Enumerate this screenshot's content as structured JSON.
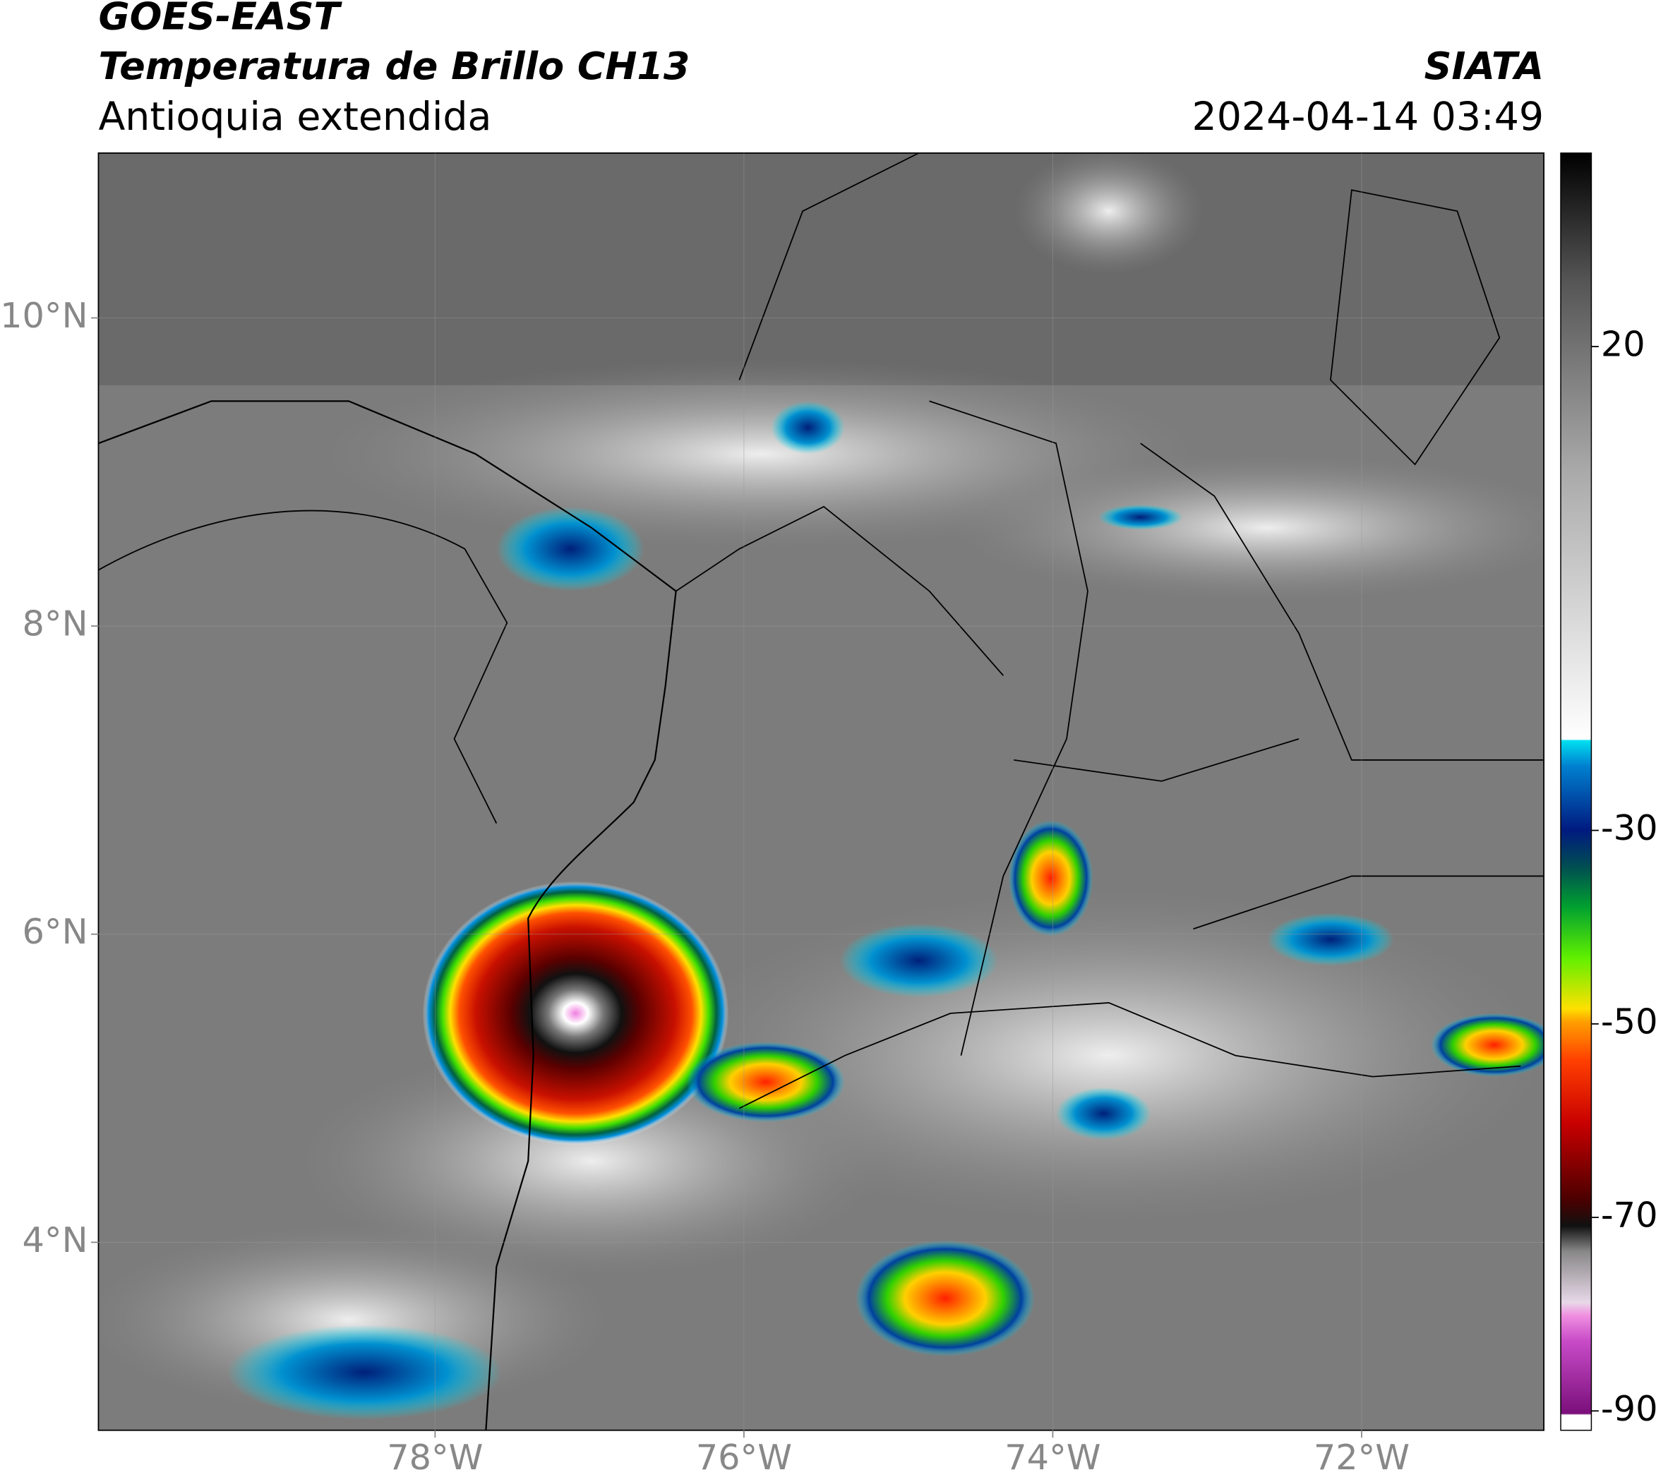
{
  "header": {
    "title": "GOES-EAST",
    "subtitle": "Temperatura de Brillo CH13",
    "region": "Antioquia extendida",
    "source": "SIATA",
    "datetime": "2024-04-14 03:49"
  },
  "map": {
    "xlim": [
      -80.18,
      -70.82
    ],
    "ylim": [
      2.78,
      11.07
    ],
    "xticks": [
      {
        "value": -78,
        "label": "78°W"
      },
      {
        "value": -76,
        "label": "76°W"
      },
      {
        "value": -74,
        "label": "74°W"
      },
      {
        "value": -72,
        "label": "72°W"
      }
    ],
    "yticks": [
      {
        "value": 10,
        "label": "10°N"
      },
      {
        "value": 8,
        "label": "8°N"
      },
      {
        "value": 6,
        "label": "6°N"
      },
      {
        "value": 4,
        "label": "4°N"
      }
    ]
  },
  "colorbar": {
    "lim": [
      -92,
      40
    ],
    "ticks": [
      20,
      -30,
      -50,
      -70,
      -90
    ]
  }
}
